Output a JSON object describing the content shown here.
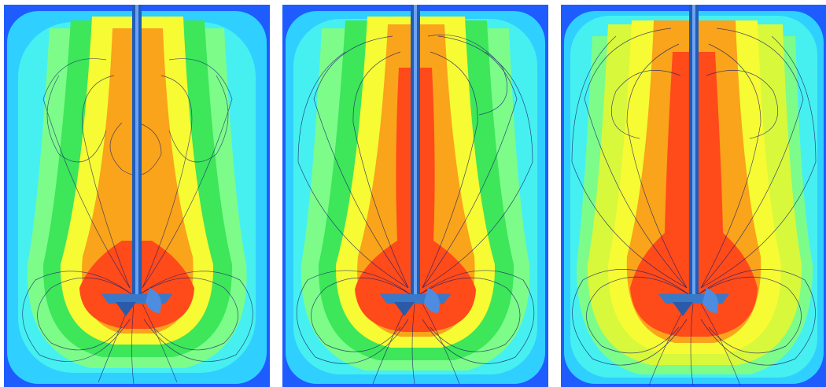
{
  "figure": {
    "panels": [
      {
        "id": "panel-1",
        "palette": {
          "tank": "#1e5cff",
          "outer": "#2fd0ff",
          "cyan": "#46f0f0",
          "lightgreen": "#7dfc8a",
          "green": "#3ee65a",
          "yellow": "#f6fb34",
          "orange": "#f9a41a",
          "red": "#ff4a1a",
          "streamline": "#1b1f6e",
          "shaft": "#1f5db8",
          "impeller": "#3a78c8"
        }
      },
      {
        "id": "panel-2",
        "palette": {
          "tank": "#1e5cff",
          "outer": "#2fd0ff",
          "cyan": "#46f0f0",
          "lightgreen": "#7dfc8a",
          "green": "#3ee65a",
          "yellow": "#f6fb34",
          "orange": "#f9a41a",
          "red": "#ff4a1a",
          "streamline": "#1b1f6e",
          "shaft": "#1f5db8",
          "impeller": "#3a78c8"
        }
      },
      {
        "id": "panel-3",
        "palette": {
          "tank": "#1e5cff",
          "outer": "#2fd0ff",
          "cyan": "#46f0f0",
          "lightgreen": "#7dfc8a",
          "green": "#3ee65a",
          "yellow": "#f6fb34",
          "orange": "#f9a41a",
          "red": "#ff4a1a",
          "streamline": "#1b1f6e",
          "shaft": "#1f5db8",
          "impeller": "#3a78c8"
        }
      }
    ]
  }
}
